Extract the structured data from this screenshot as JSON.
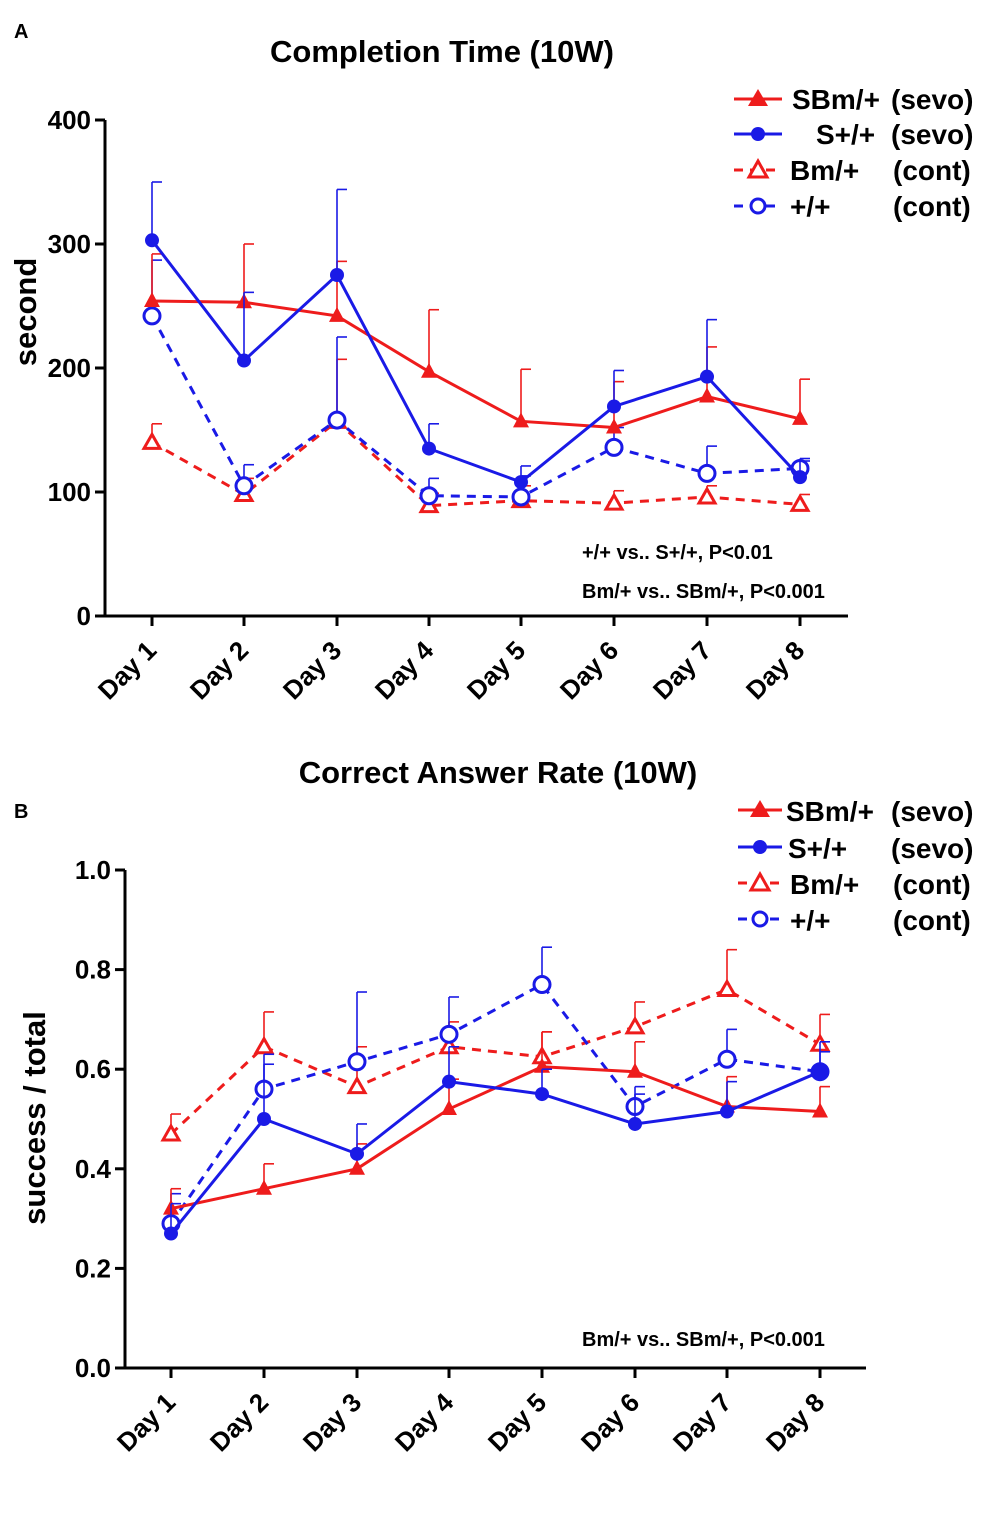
{
  "colors": {
    "red": "#ee1c1c",
    "blue": "#1a1ae6",
    "axis": "#000000"
  },
  "chart_data": [
    {
      "panel": "A",
      "type": "line",
      "title": "Completion Time (10W)",
      "xlabel": "",
      "ylabel": "second",
      "ylim": [
        0,
        400
      ],
      "yticks": [
        "0",
        "100",
        "200",
        "300",
        "400"
      ],
      "yticks_values": [
        0,
        100,
        200,
        300,
        400
      ],
      "categories": [
        "Day 1",
        "Day 2",
        "Day 3",
        "Day 4",
        "Day 5",
        "Day 6",
        "Day 7",
        "Day 8"
      ],
      "legend_position": "top-right",
      "series": [
        {
          "name": "SBm/+",
          "group": "(sevo)",
          "color": "#ee1c1c",
          "marker": "triangle-filled",
          "dashed": false,
          "values": [
            254,
            253,
            242,
            197,
            157,
            152,
            177,
            159
          ],
          "errors": [
            38,
            47,
            44,
            50,
            42,
            37,
            40,
            32
          ]
        },
        {
          "name": "S+/+",
          "group": "(sevo)",
          "color": "#1a1ae6",
          "marker": "circle-filled",
          "dashed": false,
          "values": [
            303,
            206,
            275,
            135,
            108,
            169,
            193,
            112
          ],
          "errors": [
            47,
            55,
            69,
            20,
            13,
            29,
            46,
            13
          ]
        },
        {
          "name": "Bm/+",
          "group": "(cont)",
          "color": "#ee1c1c",
          "marker": "triangle-open",
          "dashed": true,
          "values": [
            140,
            98,
            157,
            89,
            93,
            91,
            96,
            90
          ],
          "errors": [
            15,
            13,
            50,
            10,
            12,
            10,
            9,
            8
          ]
        },
        {
          "name": "+/+",
          "group": "(cont)",
          "color": "#1a1ae6",
          "marker": "circle-open",
          "dashed": true,
          "values": [
            242,
            105,
            158,
            97,
            96,
            136,
            115,
            119
          ],
          "errors": [
            45,
            17,
            67,
            14,
            17,
            16,
            22,
            8
          ]
        }
      ],
      "annotations": [
        "+/+ vs.. S+/+, P<0.01",
        "Bm/+ vs.. SBm/+, P<0.001"
      ]
    },
    {
      "panel": "B",
      "type": "line",
      "title": "Correct Answer Rate (10W)",
      "xlabel": "",
      "ylabel": "success / total",
      "ylim": [
        0,
        1.0
      ],
      "yticks": [
        "0.0",
        "0.2",
        "0.4",
        "0.6",
        "0.8",
        "1.0"
      ],
      "yticks_values": [
        0,
        0.2,
        0.4,
        0.6,
        0.8,
        1.0
      ],
      "categories": [
        "Day 1",
        "Day 2",
        "Day 3",
        "Day 4",
        "Day 5",
        "Day 6",
        "Day 7",
        "Day 8"
      ],
      "legend_position": "top-right",
      "series": [
        {
          "name": "SBm/+",
          "group": "(sevo)",
          "color": "#ee1c1c",
          "marker": "triangle-filled",
          "dashed": false,
          "values": [
            0.32,
            0.36,
            0.4,
            0.52,
            0.605,
            0.595,
            0.525,
            0.515
          ],
          "errors": [
            0.04,
            0.05,
            0.05,
            0.06,
            0.07,
            0.06,
            0.06,
            0.05
          ]
        },
        {
          "name": "S+/+",
          "group": "(sevo)",
          "color": "#1a1ae6",
          "marker": "circle-filled",
          "dashed": false,
          "values": [
            0.27,
            0.5,
            0.43,
            0.575,
            0.55,
            0.49,
            0.515,
            0.595
          ],
          "errors": [
            0.06,
            0.11,
            0.06,
            0.07,
            0.05,
            0.06,
            0.06,
            0.06
          ]
        },
        {
          "name": "Bm/+",
          "group": "(cont)",
          "color": "#ee1c1c",
          "marker": "triangle-open",
          "dashed": true,
          "values": [
            0.47,
            0.645,
            0.565,
            0.645,
            0.625,
            0.685,
            0.76,
            0.65
          ],
          "errors": [
            0.04,
            0.07,
            0.08,
            0.05,
            0.05,
            0.05,
            0.08,
            0.06
          ]
        },
        {
          "name": "+/+",
          "group": "(cont)",
          "color": "#1a1ae6",
          "marker": "circle-open",
          "dashed": true,
          "values": [
            0.29,
            0.56,
            0.615,
            0.67,
            0.77,
            0.525,
            0.62,
            0.595
          ],
          "errors": [
            0.06,
            0.07,
            0.14,
            0.075,
            0.075,
            0.04,
            0.06,
            0.04
          ]
        }
      ],
      "annotations": [
        "Bm/+ vs.. SBm/+, P<0.001"
      ]
    }
  ]
}
